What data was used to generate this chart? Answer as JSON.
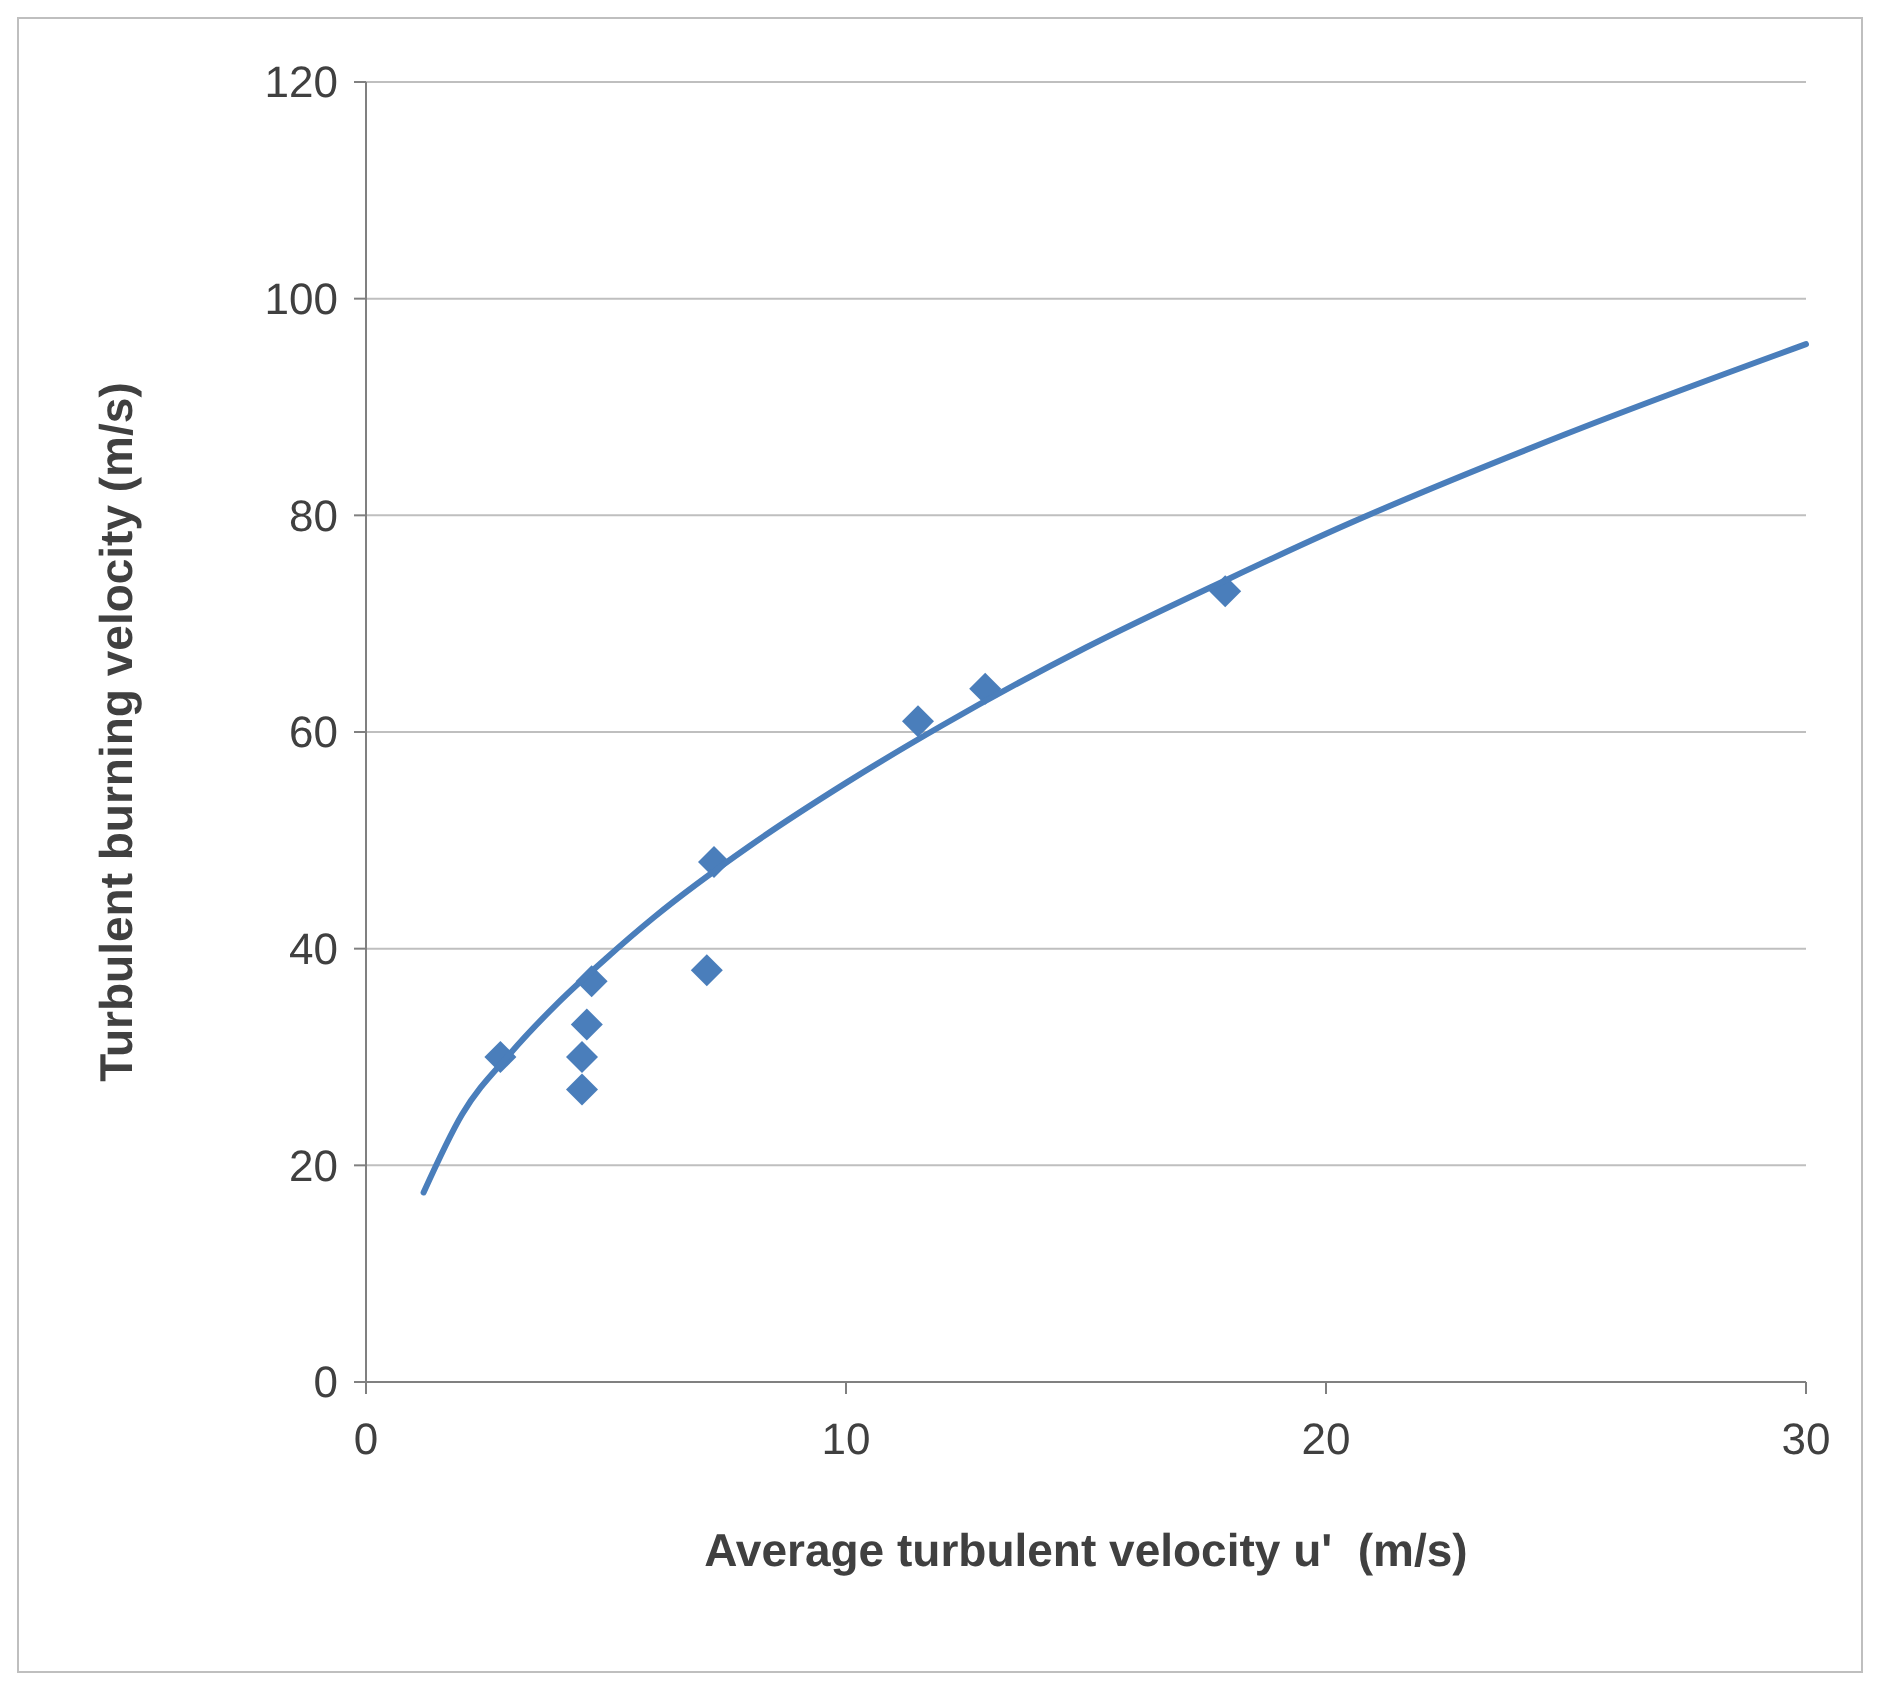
{
  "chart_data": {
    "type": "scatter",
    "xlabel": "Average turbulent velocity u'  (m/s)",
    "ylabel": "Turbulent burning velocity (m/s)",
    "xlim": [
      0,
      30
    ],
    "xticks": [
      0,
      10,
      20,
      30
    ],
    "ylim": [
      0,
      120
    ],
    "yticks": [
      0,
      20,
      40,
      60,
      80,
      100,
      120
    ],
    "grid": "y",
    "series": [
      {
        "color": "#4a7ebb",
        "marker": "diamond",
        "x": [
          2.8,
          4.5,
          4.5,
          4.6,
          4.7,
          7.1,
          7.25,
          11.5,
          12.9,
          17.9
        ],
        "values": [
          30,
          27,
          30,
          33,
          37,
          38,
          48,
          61,
          64,
          73
        ]
      },
      {
        "type": "line",
        "color": "#4a7ebb",
        "marker": "none",
        "line_style": "solid",
        "x": [
          1.2,
          2,
          3,
          4,
          5,
          6,
          8,
          10,
          12,
          15,
          18,
          20,
          25,
          30
        ],
        "values": [
          17.5,
          24.7,
          30.3,
          35,
          39.1,
          42.9,
          49.5,
          55.3,
          60.6,
          67.8,
          74.2,
          78.3,
          87.5,
          95.8
        ]
      }
    ]
  }
}
